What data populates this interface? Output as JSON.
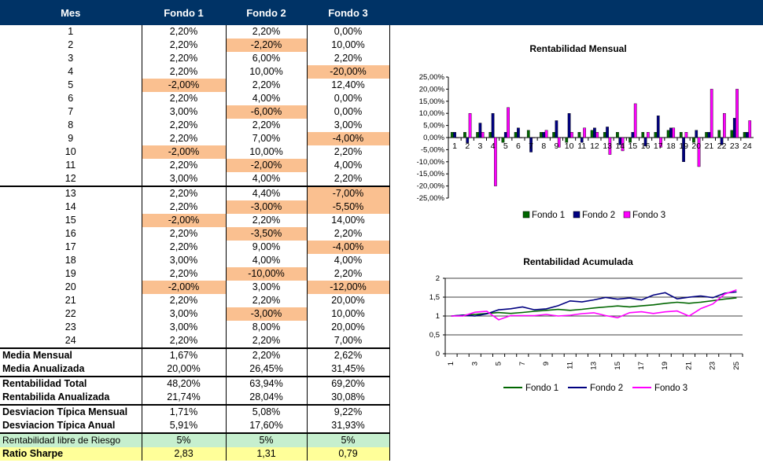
{
  "columns": [
    "Mes",
    "Fondo 1",
    "Fondo 2",
    "Fondo 3"
  ],
  "monthly": [
    {
      "mes": "1",
      "f1": "2,20%",
      "f2": "2,20%",
      "f3": "0,00%"
    },
    {
      "mes": "2",
      "f1": "2,20%",
      "f2": "-2,20%",
      "f3": "10,00%"
    },
    {
      "mes": "3",
      "f1": "2,20%",
      "f2": "6,00%",
      "f3": "2,20%"
    },
    {
      "mes": "4",
      "f1": "2,20%",
      "f2": "10,00%",
      "f3": "-20,00%"
    },
    {
      "mes": "5",
      "f1": "-2,00%",
      "f2": "2,20%",
      "f3": "12,40%"
    },
    {
      "mes": "6",
      "f1": "2,20%",
      "f2": "4,00%",
      "f3": "0,00%"
    },
    {
      "mes": "7",
      "f1": "3,00%",
      "f2": "-6,00%",
      "f3": "0,00%"
    },
    {
      "mes": "8",
      "f1": "2,20%",
      "f2": "2,20%",
      "f3": "3,00%"
    },
    {
      "mes": "9",
      "f1": "2,20%",
      "f2": "7,00%",
      "f3": "-4,00%"
    },
    {
      "mes": "10",
      "f1": "-2,00%",
      "f2": "10,00%",
      "f3": "2,20%"
    },
    {
      "mes": "11",
      "f1": "2,20%",
      "f2": "-2,00%",
      "f3": "4,00%"
    },
    {
      "mes": "12",
      "f1": "3,00%",
      "f2": "4,00%",
      "f3": "2,20%"
    },
    {
      "mes": "13",
      "f1": "2,20%",
      "f2": "4,40%",
      "f3": "-7,00%"
    },
    {
      "mes": "14",
      "f1": "2,20%",
      "f2": "-3,00%",
      "f3": "-5,50%"
    },
    {
      "mes": "15",
      "f1": "-2,00%",
      "f2": "2,20%",
      "f3": "14,00%"
    },
    {
      "mes": "16",
      "f1": "2,20%",
      "f2": "-3,50%",
      "f3": "2,20%"
    },
    {
      "mes": "17",
      "f1": "2,20%",
      "f2": "9,00%",
      "f3": "-4,00%"
    },
    {
      "mes": "18",
      "f1": "3,00%",
      "f2": "4,00%",
      "f3": "4,00%"
    },
    {
      "mes": "19",
      "f1": "2,20%",
      "f2": "-10,00%",
      "f3": "2,20%"
    },
    {
      "mes": "20",
      "f1": "-2,00%",
      "f2": "3,00%",
      "f3": "-12,00%"
    },
    {
      "mes": "21",
      "f1": "2,20%",
      "f2": "2,20%",
      "f3": "20,00%"
    },
    {
      "mes": "22",
      "f1": "3,00%",
      "f2": "-3,00%",
      "f3": "10,00%"
    },
    {
      "mes": "23",
      "f1": "3,00%",
      "f2": "8,00%",
      "f3": "20,00%"
    },
    {
      "mes": "24",
      "f1": "2,20%",
      "f2": "2,20%",
      "f3": "7,00%"
    }
  ],
  "stats": {
    "media_mensual": {
      "label": "Media Mensual",
      "f1": "1,67%",
      "f2": "2,20%",
      "f3": "2,62%"
    },
    "media_anualizada": {
      "label": "Media Anualizada",
      "f1": "20,00%",
      "f2": "26,45%",
      "f3": "31,45%"
    },
    "rent_total": {
      "label": "Rentabilidad Total",
      "f1": "48,20%",
      "f2": "63,94%",
      "f3": "69,20%"
    },
    "rent_anualizada": {
      "label": "Rentabilida Anualizada",
      "f1": "21,74%",
      "f2": "28,04%",
      "f3": "30,08%"
    },
    "desv_mensual": {
      "label": "Desviacion Típica Mensual",
      "f1": "1,71%",
      "f2": "5,08%",
      "f3": "9,22%"
    },
    "desv_anual": {
      "label": "Desviacion Típica Anual",
      "f1": "5,91%",
      "f2": "17,60%",
      "f3": "31,93%"
    },
    "libre_riesgo": {
      "label": "Rentabilidad libre de Riesgo",
      "f1": "5%",
      "f2": "5%",
      "f3": "5%"
    },
    "sharpe": {
      "label": "Ratio Sharpe",
      "f1": "2,83",
      "f2": "1,31",
      "f3": "0,79"
    }
  },
  "colors": {
    "header_bg": "#003366",
    "negative_fill": "#fac090",
    "negative_text": "#ff0000",
    "riskfree_fill": "#c6efce",
    "sharpe_fill": "#ffff99",
    "fondo1": "#006600",
    "fondo2": "#000080",
    "fondo3": "#ff00ff"
  },
  "chart_data": [
    {
      "type": "bar",
      "title": "Rentabilidad Mensual",
      "categories": [
        "1",
        "2",
        "3",
        "4",
        "5",
        "6",
        "7",
        "8",
        "9",
        "10",
        "11",
        "12",
        "13",
        "14",
        "15",
        "16",
        "17",
        "18",
        "19",
        "20",
        "21",
        "22",
        "23",
        "24"
      ],
      "ylim": [
        -25,
        25
      ],
      "yticks": [
        "25,00%",
        "20,00%",
        "15,00%",
        "10,00%",
        "5,00%",
        "0,00%",
        "-5,00%",
        "-10,00%",
        "-15,00%",
        "-20,00%",
        "-25,00%"
      ],
      "legend_position": "bottom",
      "grid": false,
      "series": [
        {
          "name": "Fondo 1",
          "values": [
            2.2,
            2.2,
            2.2,
            2.2,
            -2,
            2.2,
            3,
            2.2,
            2.2,
            -2,
            2.2,
            3,
            2.2,
            2.2,
            -2,
            2.2,
            2.2,
            3,
            2.2,
            -2,
            2.2,
            3,
            3,
            2.2
          ]
        },
        {
          "name": "Fondo 2",
          "values": [
            2.2,
            -2.2,
            6,
            10,
            2.2,
            4,
            -6,
            2.2,
            7,
            10,
            -2,
            4,
            4.4,
            -3,
            2.2,
            -3.5,
            9,
            4,
            -10,
            3,
            2.2,
            -3,
            8,
            2.2
          ]
        },
        {
          "name": "Fondo 3",
          "values": [
            0,
            10,
            2.2,
            -20,
            12.4,
            0,
            0,
            3,
            -4,
            2.2,
            4,
            2.2,
            -7,
            -5.5,
            14,
            2.2,
            -4,
            4,
            2.2,
            -12,
            20,
            10,
            20,
            7
          ]
        }
      ]
    },
    {
      "type": "line",
      "title": "Rentabilidad Acumulada",
      "x": [
        "1",
        "2",
        "3",
        "4",
        "5",
        "6",
        "7",
        "8",
        "9",
        "10",
        "11",
        "12",
        "13",
        "14",
        "15",
        "16",
        "17",
        "18",
        "19",
        "20",
        "21",
        "22",
        "23",
        "24",
        "25"
      ],
      "xticks": [
        "1",
        "3",
        "5",
        "7",
        "9",
        "11",
        "13",
        "15",
        "17",
        "19",
        "21",
        "23",
        "25"
      ],
      "ylim": [
        0,
        2
      ],
      "yticks": [
        "2",
        "1,5",
        "1",
        "0,5",
        "0"
      ],
      "legend_position": "bottom",
      "grid": true,
      "series": [
        {
          "name": "Fondo 1",
          "values": [
            1.0,
            1.022,
            1.044,
            1.067,
            1.091,
            1.069,
            1.093,
            1.125,
            1.15,
            1.175,
            1.151,
            1.177,
            1.212,
            1.239,
            1.266,
            1.241,
            1.268,
            1.296,
            1.335,
            1.364,
            1.337,
            1.366,
            1.407,
            1.45,
            1.482
          ]
        },
        {
          "name": "Fondo 2",
          "values": [
            1.0,
            1.022,
            0.999,
            1.059,
            1.165,
            1.191,
            1.239,
            1.165,
            1.19,
            1.273,
            1.401,
            1.373,
            1.428,
            1.491,
            1.446,
            1.478,
            1.426,
            1.554,
            1.616,
            1.455,
            1.498,
            1.531,
            1.486,
            1.604,
            1.639
          ]
        },
        {
          "name": "Fondo 3",
          "values": [
            1.0,
            1.0,
            1.1,
            1.124,
            0.899,
            1.011,
            1.011,
            1.011,
            1.041,
            0.999,
            1.021,
            1.062,
            1.086,
            1.01,
            0.954,
            1.088,
            1.112,
            1.067,
            1.11,
            1.134,
            0.998,
            1.198,
            1.318,
            1.581,
            1.692
          ]
        }
      ]
    }
  ]
}
